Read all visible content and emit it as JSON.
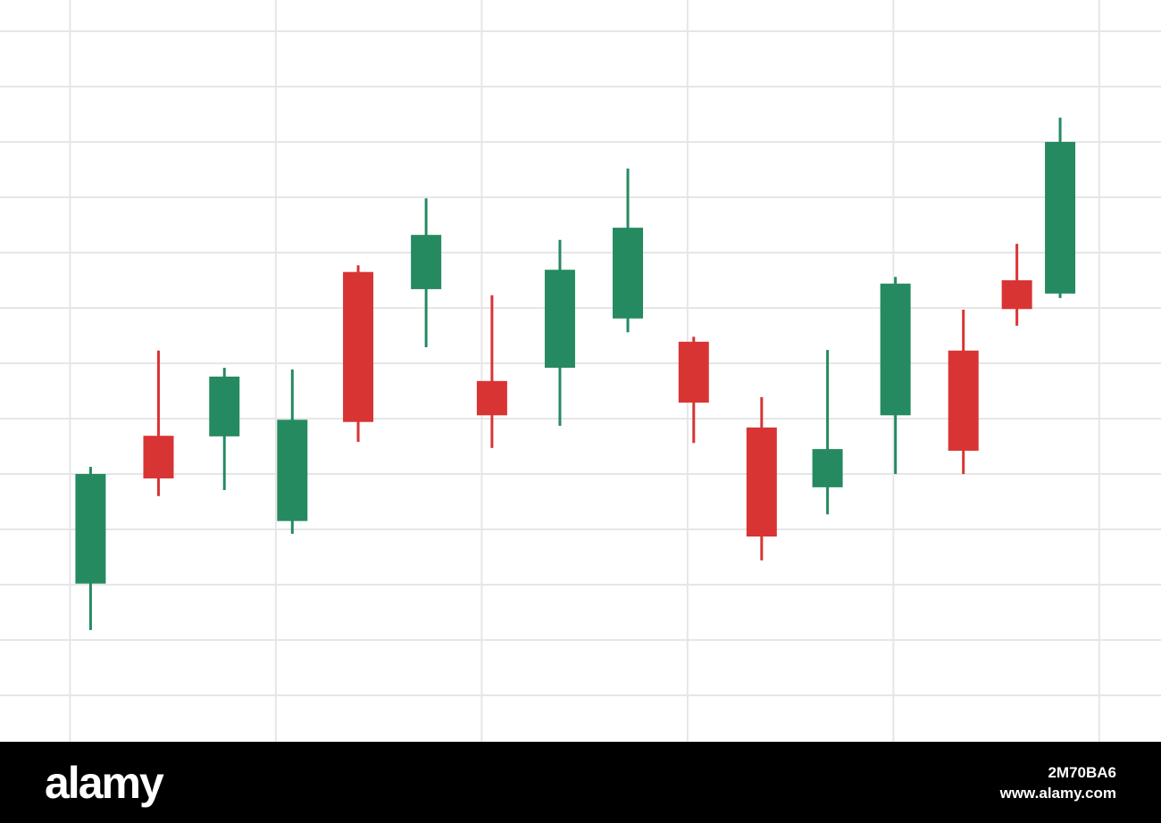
{
  "chart_data": {
    "type": "candlestick",
    "x": [
      0.1,
      0.43,
      0.75,
      1.08,
      1.4,
      1.73,
      2.05,
      2.38,
      2.71,
      3.03,
      3.36,
      3.68,
      4.01,
      4.34,
      4.6,
      4.81
    ],
    "open": [
      2.02,
      4.69,
      4.68,
      3.15,
      7.65,
      7.34,
      5.68,
      5.92,
      6.81,
      6.39,
      4.84,
      3.76,
      5.06,
      6.23,
      7.5,
      7.26
    ],
    "high": [
      4.13,
      6.23,
      5.92,
      5.89,
      7.77,
      8.98,
      7.23,
      8.23,
      9.52,
      6.48,
      5.39,
      6.24,
      7.56,
      6.97,
      8.16,
      10.44
    ],
    "low": [
      1.18,
      3.6,
      3.71,
      2.92,
      4.58,
      6.29,
      4.47,
      4.87,
      6.56,
      4.56,
      2.44,
      3.27,
      4.0,
      4.0,
      6.68,
      7.18
    ],
    "close": [
      4.0,
      3.92,
      5.76,
      4.98,
      4.94,
      8.32,
      5.06,
      7.69,
      8.45,
      5.29,
      2.87,
      4.45,
      7.44,
      4.42,
      6.98,
      10.0
    ],
    "up_color": "#258a60",
    "down_color": "#d93434",
    "xlim": [
      -0.34,
      5.3
    ],
    "xticks": [
      0,
      1,
      2,
      3,
      4,
      5
    ],
    "ylim": [
      -0.5,
      12.5
    ],
    "yticks": [
      0,
      1,
      2,
      3,
      4,
      5,
      6,
      7,
      8,
      9,
      10,
      11,
      12
    ],
    "grid": true
  },
  "footer": {
    "logo": "alamy",
    "image_id": "2M70BA6",
    "url": "www.alamy.com"
  }
}
